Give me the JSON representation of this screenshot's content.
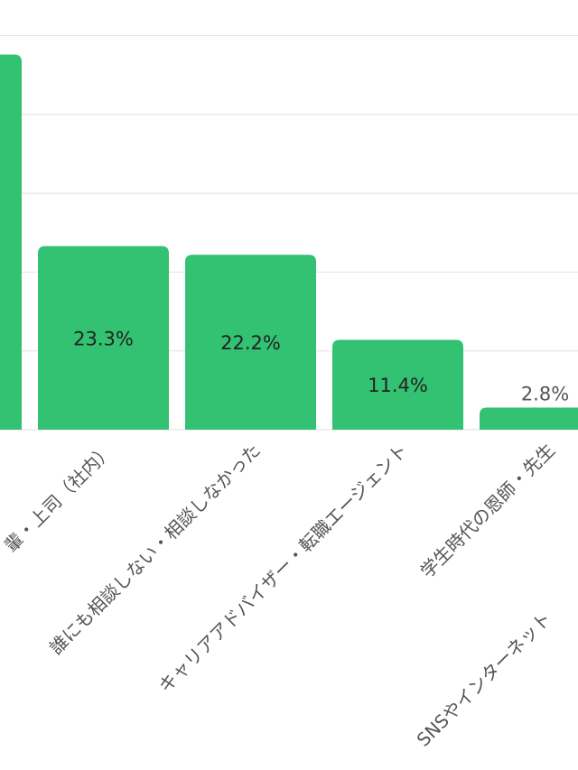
{
  "chart_data": {
    "type": "bar",
    "categories": [
      "",
      "輩・上司（社内）",
      "誰にも相談しない・相談しなかった",
      "キャリアアドバイザー・転職エージェント",
      "学生時代の恩師・先生",
      "SNSやインターネット"
    ],
    "values": [
      47.6,
      23.3,
      22.2,
      11.4,
      2.8,
      null
    ],
    "data_labels": [
      "",
      "23.3%",
      "22.2%",
      "11.4%",
      "2.8%",
      ""
    ],
    "ylim": [
      0,
      50
    ],
    "gridlines_at": [
      10,
      20,
      30,
      40,
      50
    ],
    "grid": true,
    "bar_color": "#33c172"
  }
}
